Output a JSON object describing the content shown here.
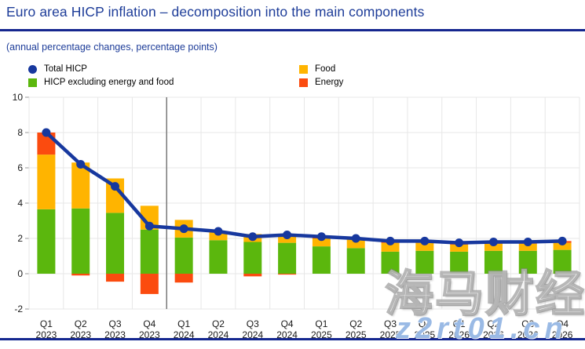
{
  "header": {
    "title": "Euro area HICP inflation – decomposition into the main components",
    "subtitle": "(annual percentage changes, percentage points)"
  },
  "legend": {
    "items": [
      {
        "label": "Total HICP",
        "marker": "circle",
        "color": "#17389e"
      },
      {
        "label": "HICP excluding energy and food",
        "marker": "square",
        "color": "#5bb70d"
      },
      {
        "label": "Food",
        "marker": "square",
        "color": "#ffb400"
      },
      {
        "label": "Energy",
        "marker": "square",
        "color": "#fb4b0f"
      }
    ]
  },
  "watermark": {
    "brand": "海马财经",
    "site": "z2rt01.cn"
  },
  "chart_data": {
    "type": "bar",
    "subtype": "stacked_bars_with_total_line",
    "title": "Euro area HICP inflation – decomposition into the main components",
    "ylabel": "",
    "xlabel": "",
    "ylim": [
      -2,
      10
    ],
    "yticks": [
      -2,
      0,
      2,
      4,
      6,
      8,
      10
    ],
    "grid": true,
    "legend_position": "top",
    "projection_divider_after_index": 3,
    "categories": [
      "Q1 2023",
      "Q2 2023",
      "Q3 2023",
      "Q4 2023",
      "Q1 2024",
      "Q2 2024",
      "Q3 2024",
      "Q4 2024",
      "Q1 2025",
      "Q2 2025",
      "Q3 2025",
      "Q4 2025",
      "Q1 2026",
      "Q2 2026",
      "Q3 2026",
      "Q4 2026"
    ],
    "series": [
      {
        "name": "HICP excluding energy and food",
        "type": "bar",
        "color": "#5bb70d",
        "values": [
          3.65,
          3.7,
          3.45,
          2.5,
          2.05,
          1.9,
          1.8,
          1.75,
          1.55,
          1.45,
          1.25,
          1.3,
          1.25,
          1.3,
          1.3,
          1.35
        ]
      },
      {
        "name": "Food",
        "type": "bar",
        "color": "#ffb400",
        "values": [
          3.1,
          2.6,
          1.95,
          1.35,
          1.0,
          0.5,
          0.45,
          0.5,
          0.45,
          0.5,
          0.5,
          0.45,
          0.4,
          0.4,
          0.4,
          0.4
        ]
      },
      {
        "name": "Energy",
        "type": "bar",
        "color": "#fb4b0f",
        "values": [
          1.25,
          -0.1,
          -0.45,
          -1.15,
          -0.5,
          0.0,
          -0.15,
          -0.05,
          0.1,
          0.05,
          0.1,
          0.1,
          0.1,
          0.1,
          0.1,
          0.1
        ]
      },
      {
        "name": "Total HICP",
        "type": "line",
        "color": "#17389e",
        "values": [
          8.0,
          6.2,
          4.95,
          2.7,
          2.55,
          2.4,
          2.1,
          2.2,
          2.1,
          2.0,
          1.85,
          1.85,
          1.75,
          1.8,
          1.8,
          1.85
        ]
      }
    ],
    "colors": {
      "grid": "#e7e7e7",
      "divider": "#7a7a7a",
      "axis_text": "#1a1a1a",
      "accent_blue": "#15278f"
    }
  }
}
